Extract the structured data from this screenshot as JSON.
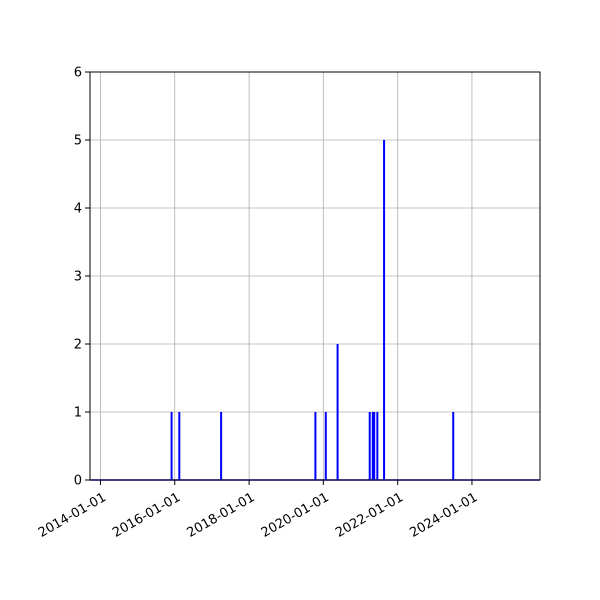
{
  "chart_data": {
    "type": "line",
    "title": "",
    "xlabel": "",
    "ylabel": "",
    "x_axis_type": "date",
    "xlim": [
      "2013-09-20",
      "2025-10-31"
    ],
    "ylim": [
      0,
      6
    ],
    "grid": true,
    "colors": {
      "series": "#0000ff",
      "grid": "#b0b0b0",
      "axes": "#000000"
    },
    "x_tick_labels": [
      "2014-01-01",
      "2016-01-01",
      "2018-01-01",
      "2020-01-01",
      "2022-01-01",
      "2024-01-01"
    ],
    "y_tick_labels": [
      "0",
      "1",
      "2",
      "3",
      "4",
      "5",
      "6"
    ],
    "series": [
      {
        "values": [
          {
            "x": "2015-12-01",
            "y": 1
          },
          {
            "x": "2016-02-15",
            "y": 1
          },
          {
            "x": "2017-04-01",
            "y": 1
          },
          {
            "x": "2019-10-15",
            "y": 1
          },
          {
            "x": "2020-01-25",
            "y": 1
          },
          {
            "x": "2020-05-20",
            "y": 2
          },
          {
            "x": "2021-04-01",
            "y": 1
          },
          {
            "x": "2021-05-01",
            "y": 1
          },
          {
            "x": "2021-05-15",
            "y": 1
          },
          {
            "x": "2021-06-15",
            "y": 1
          },
          {
            "x": "2021-08-20",
            "y": 5
          },
          {
            "x": "2023-07-01",
            "y": 1
          }
        ]
      }
    ]
  }
}
